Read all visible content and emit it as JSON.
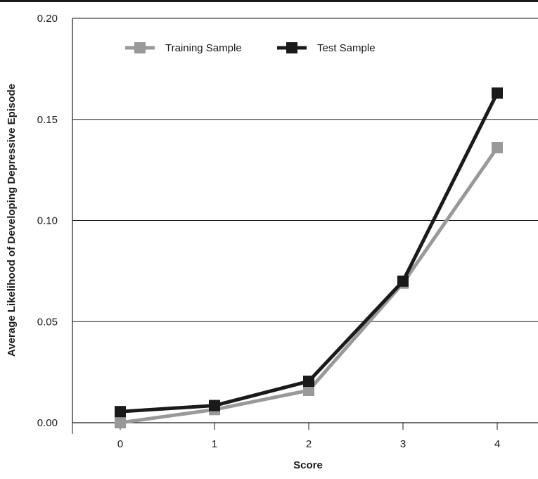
{
  "chart_data": {
    "type": "line",
    "title": "",
    "xlabel": "Score",
    "ylabel": "Average Likelihood of Developing Depressive Episode",
    "categories": [
      "0",
      "1",
      "2",
      "3",
      "4"
    ],
    "x": [
      0,
      1,
      2,
      3,
      4
    ],
    "ylim": [
      0,
      0.2
    ],
    "yticks": [
      "0.00",
      "0.05",
      "0.10",
      "0.15",
      "0.20"
    ],
    "grid": "horizontal",
    "legend_position": "top",
    "series": [
      {
        "name": "Training Sample",
        "color": "#999999",
        "values": [
          0.0,
          0.0065,
          0.016,
          0.069,
          0.136
        ]
      },
      {
        "name": "Test Sample",
        "color": "#1a1a1a",
        "values": [
          0.0055,
          0.0085,
          0.0205,
          0.07,
          0.163
        ]
      }
    ]
  }
}
